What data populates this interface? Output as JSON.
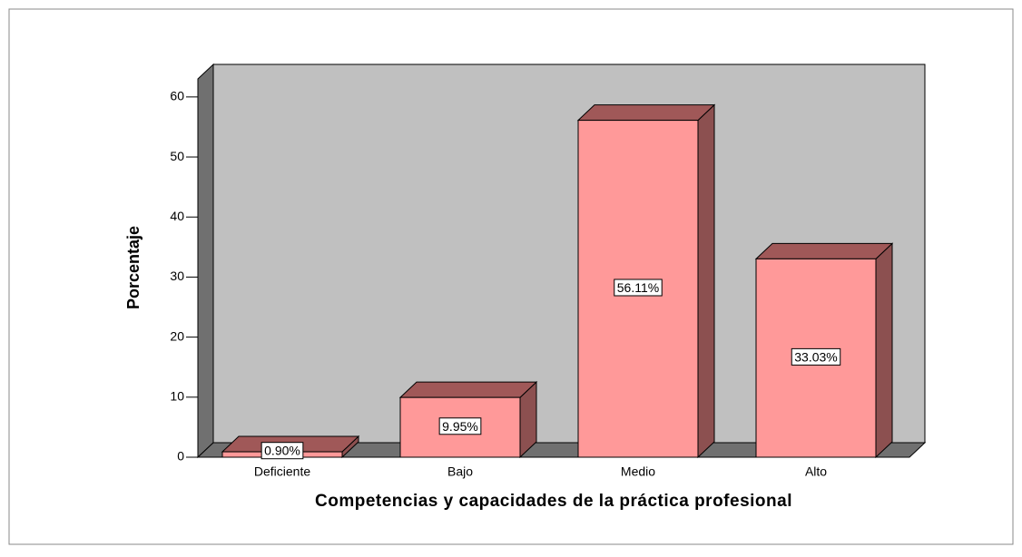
{
  "chart_data": {
    "type": "bar3d",
    "categories": [
      "Deficiente",
      "Bajo",
      "Medio",
      "Alto"
    ],
    "values": [
      0.9,
      9.95,
      56.11,
      33.03
    ],
    "value_labels": [
      "0.90%",
      "9.95%",
      "56.11%",
      "33.03%"
    ],
    "color": "#ff9999",
    "y_label": "Porcentaje",
    "x_label": "Competencias y capacidades de la práctica profesional",
    "ylim": [
      0,
      63
    ],
    "yticks": [
      0,
      10,
      20,
      30,
      40,
      50,
      60
    ]
  }
}
